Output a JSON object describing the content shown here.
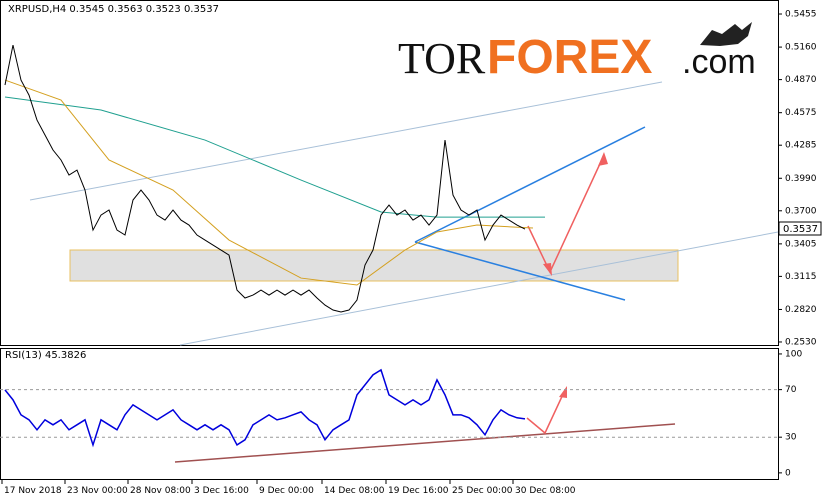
{
  "header": "XRPUSD,H4  0.3545 0.3563 0.3523 0.3537",
  "logo": {
    "part1": "TOR",
    "part2": "FOREX",
    "part3": ".com"
  },
  "last_price_label": "0.3537",
  "chart_data": [
    {
      "type": "line",
      "color": "#000000",
      "xlim": [
        -0.625,
        96.625
      ],
      "ylim": [
        0.2503,
        0.558
      ],
      "yticks": [
        {
          "value": 0.5455,
          "label": "0.5455"
        },
        {
          "value": 0.516,
          "label": "0.5160"
        },
        {
          "value": 0.487,
          "label": "0.4870"
        },
        {
          "value": 0.4575,
          "label": "0.4575"
        },
        {
          "value": 0.4285,
          "label": "0.4285"
        },
        {
          "value": 0.399,
          "label": "0.3990"
        },
        {
          "value": 0.37,
          "label": "0.3700"
        },
        {
          "value": 0.3405,
          "label": "0.3405"
        },
        {
          "value": 0.3115,
          "label": "0.3115"
        },
        {
          "value": 0.282,
          "label": "0.2820"
        },
        {
          "value": 0.253,
          "label": "0.2530"
        }
      ],
      "xticks": [
        {
          "value": -0.375,
          "label": "17 Nov 2018"
        },
        {
          "value": 7.5,
          "label": "23 Nov 00:00"
        },
        {
          "value": 15.375,
          "label": "28 Nov 08:00"
        },
        {
          "value": 23.375,
          "label": "3 Dec 16:00"
        },
        {
          "value": 31.5,
          "label": "9 Dec 00:00"
        },
        {
          "value": 39.625,
          "label": "14 Dec 08:00"
        },
        {
          "value": 47.625,
          "label": "19 Dec 16:00"
        },
        {
          "value": 55.625,
          "label": "25 Dec 00:00"
        },
        {
          "value": 63.5,
          "label": "30 Dec 08:00"
        }
      ],
      "values": [
        0.4822,
        0.5178,
        0.4866,
        0.4732,
        0.4509,
        0.4376,
        0.4242,
        0.4153,
        0.4019,
        0.4063,
        0.3885,
        0.3528,
        0.3662,
        0.3707,
        0.3528,
        0.3484,
        0.3796,
        0.3885,
        0.3796,
        0.3662,
        0.3617,
        0.3707,
        0.3617,
        0.3573,
        0.3484,
        0.3439,
        0.3394,
        0.335,
        0.3305,
        0.2993,
        0.2922,
        0.2948,
        0.2993,
        0.2948,
        0.2993,
        0.2948,
        0.2993,
        0.2948,
        0.2993,
        0.2922,
        0.2859,
        0.2815,
        0.2797,
        0.2815,
        0.2904,
        0.3216,
        0.335,
        0.3662,
        0.3751,
        0.3662,
        0.3707,
        0.3617,
        0.3662,
        0.3573,
        0.3662,
        0.4331,
        0.384,
        0.3707,
        0.3662,
        0.3707,
        0.3439,
        0.3573,
        0.3662,
        0.3617,
        0.3573,
        0.3537
      ],
      "series": [
        {
          "color": "#20a090",
          "x": [
            0,
            12,
            25,
            37,
            47,
            54,
            67.5
          ],
          "values": [
            0.4715,
            0.4599,
            0.4331,
            0.3974,
            0.3689,
            0.3644,
            0.3644
          ]
        },
        {
          "color": "#d4a020",
          "x": [
            0,
            7,
            13,
            21,
            28,
            37,
            44,
            50,
            54,
            59,
            66
          ],
          "values": [
            0.4866,
            0.4688,
            0.4153,
            0.3885,
            0.3439,
            0.31,
            0.3038,
            0.335,
            0.3511,
            0.3573,
            0.3546
          ]
        }
      ]
    },
    {
      "type": "line",
      "title": "RSI(13) 45.3826",
      "color": "#0000dd",
      "xlim": [
        -0.625,
        96.625
      ],
      "ylim": [
        -6,
        105
      ],
      "yticks": [
        100,
        70,
        30,
        0
      ],
      "values": [
        69.8,
        61.4,
        48.8,
        44.6,
        36.2,
        44.6,
        40.4,
        44.6,
        36.2,
        40.4,
        44.6,
        23.5,
        44.6,
        40.4,
        36.2,
        48.8,
        57.2,
        53.0,
        48.8,
        44.6,
        48.8,
        53.0,
        44.6,
        40.4,
        36.2,
        40.4,
        36.2,
        40.4,
        36.2,
        23.5,
        27.8,
        40.4,
        44.6,
        48.8,
        44.6,
        46.3,
        48.8,
        51.3,
        44.6,
        40.4,
        27.8,
        36.2,
        40.4,
        44.6,
        65.6,
        74.0,
        82.4,
        86.6,
        65.6,
        61.4,
        57.2,
        61.4,
        57.2,
        61.4,
        78.2,
        65.6,
        48.8,
        48.8,
        46.3,
        40.4,
        32.0,
        44.6,
        53.0,
        48.8,
        46.3,
        45.3826
      ]
    }
  ]
}
